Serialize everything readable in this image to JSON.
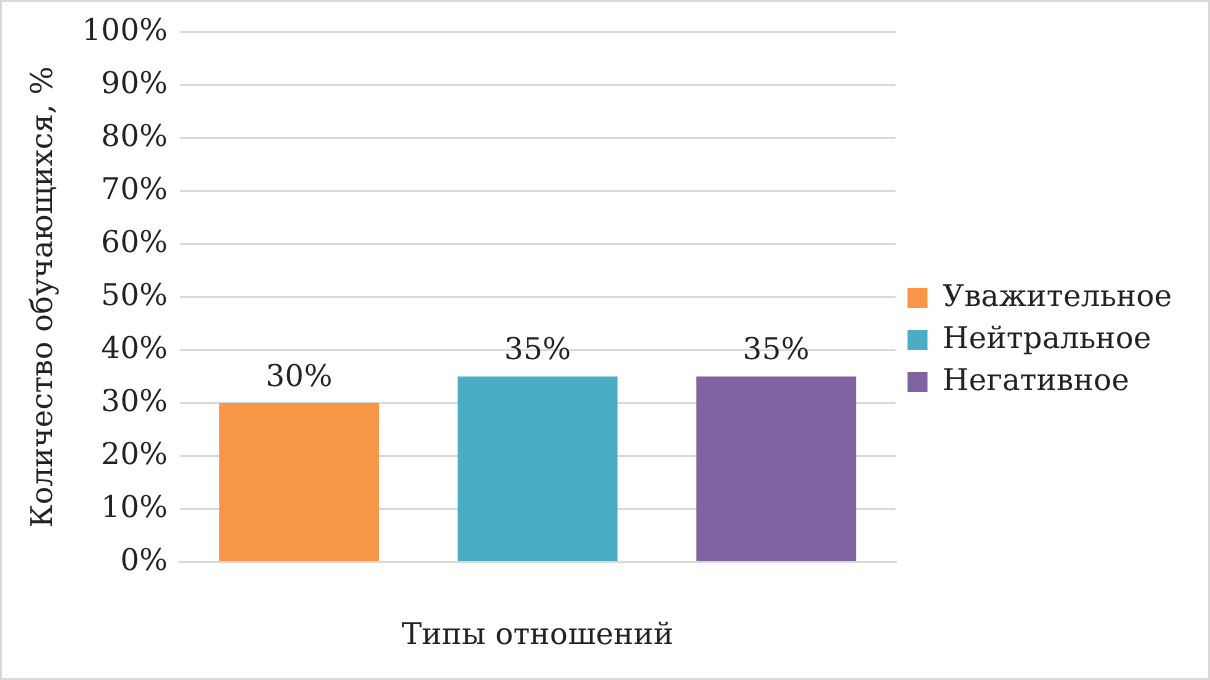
{
  "chart_data": {
    "type": "bar",
    "xlabel": "Типы отношений",
    "ylabel": "Количество обучающихся, %",
    "categories": [
      null
    ],
    "series": [
      {
        "name": "Уважительное",
        "color": "#f79646",
        "values": [
          30
        ],
        "value_labels": [
          "30%"
        ]
      },
      {
        "name": "Нейтральное",
        "color": "#4bacc6",
        "values": [
          35
        ],
        "value_labels": [
          "35%"
        ]
      },
      {
        "name": "Негативное",
        "color": "#8064a2",
        "values": [
          35
        ],
        "value_labels": [
          "35%"
        ]
      }
    ],
    "ylim": [
      0,
      100
    ],
    "yticks": [
      {
        "value": 0,
        "label": "0%"
      },
      {
        "value": 10,
        "label": "10%"
      },
      {
        "value": 20,
        "label": "20%"
      },
      {
        "value": 30,
        "label": "30%"
      },
      {
        "value": 40,
        "label": "40%"
      },
      {
        "value": 50,
        "label": "50%"
      },
      {
        "value": 60,
        "label": "60%"
      },
      {
        "value": 70,
        "label": "70%"
      },
      {
        "value": 80,
        "label": "80%"
      },
      {
        "value": 90,
        "label": "90%"
      },
      {
        "value": 100,
        "label": "100%"
      }
    ],
    "grid": "y",
    "legend": "right"
  }
}
